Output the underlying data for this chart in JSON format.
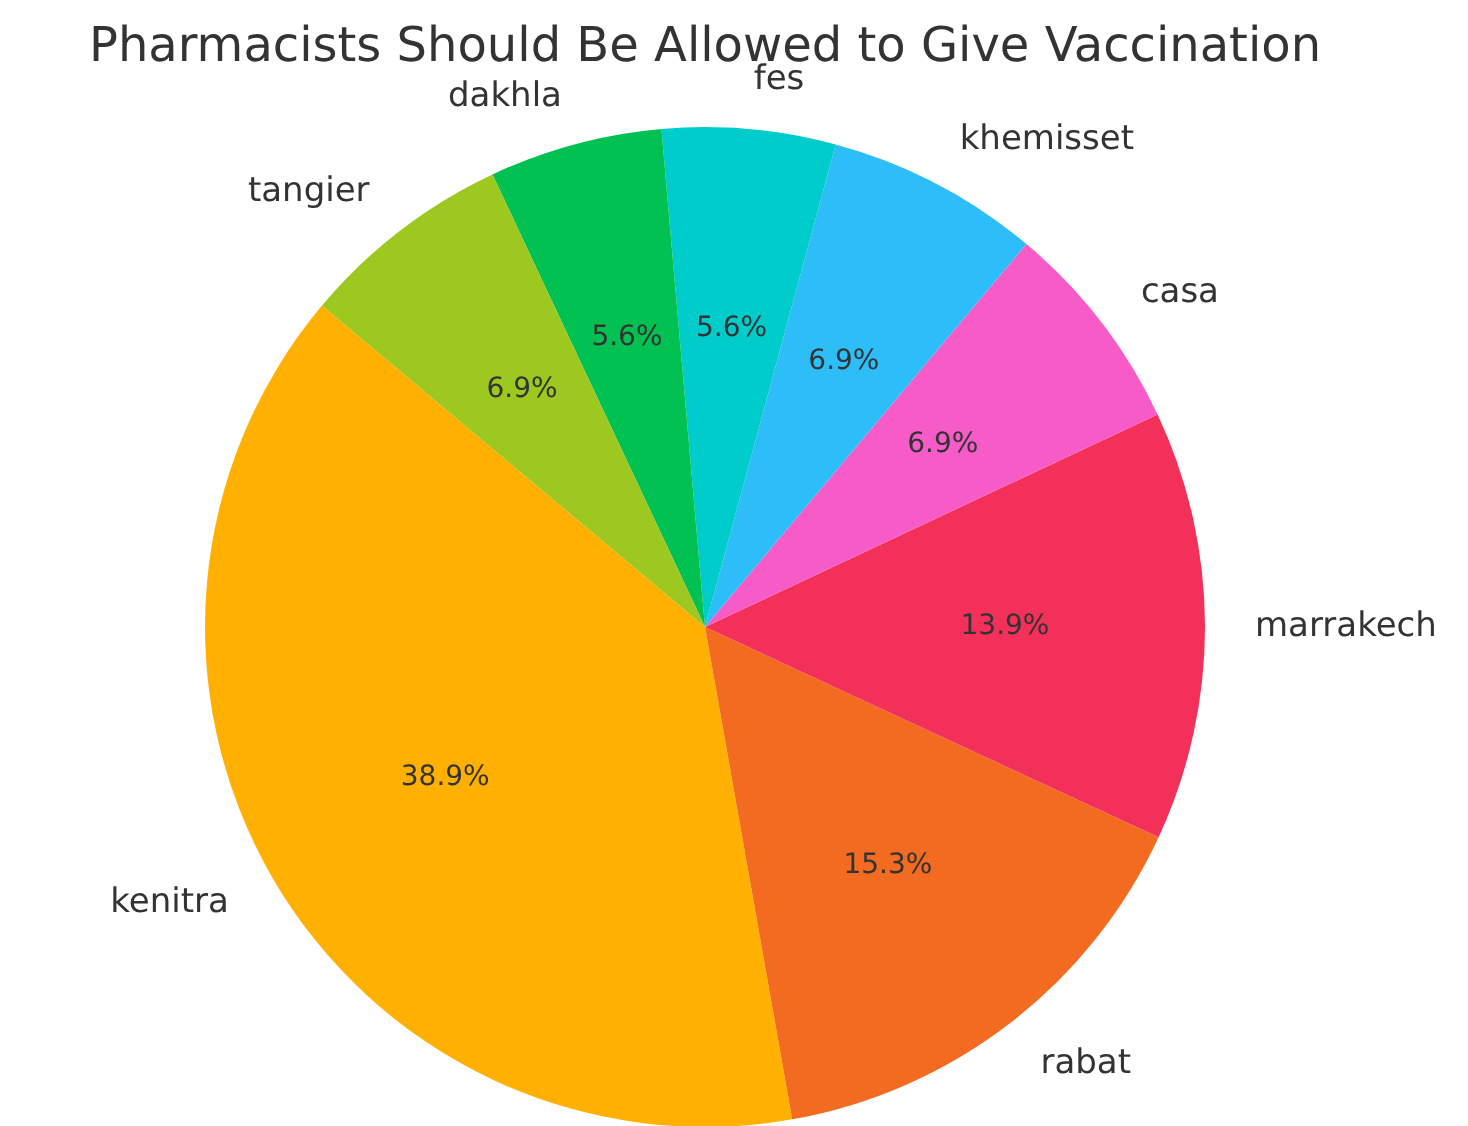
{
  "chart_data": {
    "type": "pie",
    "title": "Pharmacists Should Be Allowed to Give Vaccination",
    "categories": [
      "kenitra",
      "rabat",
      "marrakech",
      "casa",
      "khemisset",
      "fes",
      "dakhla",
      "tangier"
    ],
    "values": [
      38.9,
      15.3,
      13.9,
      6.9,
      6.9,
      5.6,
      5.6,
      6.9
    ],
    "colors": [
      "#ffb000",
      "#f26b21",
      "#f2305a",
      "#f75bc8",
      "#2dbef9",
      "#00cccc",
      "#00c152",
      "#9dc81f"
    ],
    "value_labels": [
      "38.9%",
      "15.3%",
      "13.9%",
      "6.9%",
      "6.9%",
      "5.6%",
      "5.6%",
      "6.9%"
    ]
  }
}
